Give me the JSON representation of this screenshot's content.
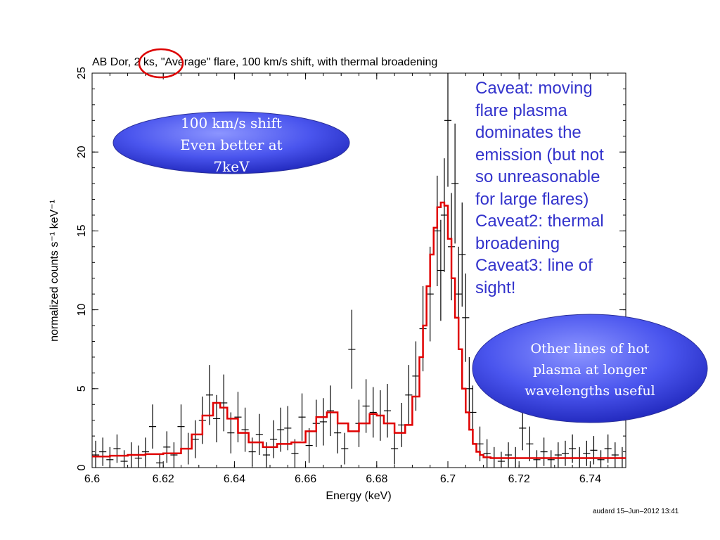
{
  "chart_data": {
    "type": "line",
    "title": "AB Dor, 2 ks, \"Average\" flare, 100 km/s shift, with thermal broadening",
    "xlabel": "Energy (keV)",
    "ylabel": "normalized counts s⁻¹ keV⁻¹",
    "xlim": [
      6.6,
      6.75
    ],
    "ylim": [
      0,
      25
    ],
    "xticks": [
      6.6,
      6.62,
      6.64,
      6.66,
      6.68,
      6.7,
      6.72,
      6.74
    ],
    "xtick_labels": [
      "6.6",
      "6.62",
      "6.64",
      "6.66",
      "6.68",
      "6.7",
      "6.72",
      "6.74"
    ],
    "yticks": [
      0,
      5,
      10,
      15,
      20,
      25
    ],
    "ytick_labels": [
      "0",
      "5",
      "10",
      "15",
      "20",
      "25"
    ],
    "grid": false,
    "model_color": "#e00000",
    "data_color": "#000000",
    "model": {
      "x": [
        6.6,
        6.605,
        6.61,
        6.615,
        6.62,
        6.625,
        6.628,
        6.631,
        6.634,
        6.636,
        6.638,
        6.641,
        6.644,
        6.648,
        6.652,
        6.656,
        6.66,
        6.663,
        6.666,
        6.669,
        6.672,
        6.675,
        6.678,
        6.68,
        6.682,
        6.685,
        6.688,
        6.69,
        6.692,
        6.693,
        6.694,
        6.695,
        6.696,
        6.697,
        6.698,
        6.699,
        6.7,
        6.701,
        6.702,
        6.703,
        6.704,
        6.705,
        6.706,
        6.707,
        6.708,
        6.709,
        6.71,
        6.712,
        6.72,
        6.73,
        6.74,
        6.75
      ],
      "y": [
        0.7,
        0.75,
        0.8,
        0.85,
        0.9,
        1.2,
        2.1,
        3.3,
        4.1,
        3.8,
        3.1,
        2.2,
        1.6,
        1.3,
        1.5,
        1.6,
        2.3,
        3.2,
        3.5,
        2.8,
        2.3,
        2.8,
        3.4,
        3.3,
        2.8,
        2.2,
        2.7,
        4.5,
        7.0,
        9.0,
        11.5,
        13.5,
        15.2,
        16.5,
        16.8,
        16.6,
        14.5,
        12.0,
        9.5,
        7.5,
        5.0,
        3.5,
        2.4,
        1.5,
        1.0,
        0.8,
        0.65,
        0.6,
        0.6,
        0.6,
        0.6,
        0.6
      ]
    },
    "data_points": {
      "x": [
        6.601,
        6.603,
        6.605,
        6.607,
        6.609,
        6.611,
        6.613,
        6.615,
        6.617,
        6.619,
        6.621,
        6.623,
        6.625,
        6.627,
        6.629,
        6.631,
        6.633,
        6.635,
        6.637,
        6.639,
        6.641,
        6.643,
        6.645,
        6.647,
        6.649,
        6.651,
        6.653,
        6.655,
        6.657,
        6.659,
        6.661,
        6.663,
        6.665,
        6.667,
        6.669,
        6.671,
        6.673,
        6.675,
        6.677,
        6.679,
        6.681,
        6.683,
        6.685,
        6.687,
        6.689,
        6.691,
        6.693,
        6.695,
        6.697,
        6.698,
        6.699,
        6.7,
        6.701,
        6.702,
        6.703,
        6.704,
        6.705,
        6.706,
        6.707,
        6.709,
        6.711,
        6.713,
        6.715,
        6.717,
        6.719,
        6.721,
        6.723,
        6.725,
        6.727,
        6.729,
        6.731,
        6.733,
        6.735,
        6.737,
        6.739,
        6.741,
        6.743,
        6.745,
        6.747,
        6.749
      ],
      "y": [
        0.8,
        1.0,
        0.5,
        1.2,
        0.4,
        0.8,
        0.6,
        1.0,
        2.6,
        0.3,
        1.3,
        0.8,
        2.6,
        1.2,
        1.8,
        3.0,
        4.6,
        3.1,
        4.1,
        2.2,
        3.2,
        2.4,
        1.0,
        2.1,
        0.8,
        1.8,
        2.4,
        2.5,
        0.9,
        3.2,
        1.4,
        2.8,
        2.9,
        3.6,
        2.2,
        1.2,
        7.5,
        2.8,
        3.9,
        3.5,
        3.3,
        3.6,
        1.2,
        2.7,
        4.6,
        5.8,
        8.8,
        11.0,
        15.0,
        12.5,
        16.0,
        22.0,
        14.0,
        18.0,
        11.0,
        13.5,
        9.5,
        5.0,
        3.5,
        1.5,
        0.9,
        0.6,
        0.4,
        0.8,
        0.6,
        2.5,
        1.5,
        0.5,
        1.0,
        0.5,
        0.8,
        0.9,
        1.2,
        0.6,
        0.9,
        1.1,
        0.5,
        1.2,
        0.8,
        0.6
      ],
      "err": [
        0.9,
        0.9,
        0.8,
        0.9,
        0.7,
        0.8,
        0.8,
        0.9,
        1.4,
        0.6,
        1.0,
        0.8,
        1.4,
        1.0,
        1.2,
        1.5,
        1.9,
        1.5,
        1.8,
        1.3,
        1.6,
        1.4,
        0.9,
        1.3,
        0.8,
        1.2,
        1.4,
        1.4,
        0.9,
        1.5,
        1.1,
        1.5,
        1.5,
        1.6,
        1.3,
        1.0,
        2.5,
        1.5,
        1.7,
        1.6,
        1.6,
        1.7,
        1.0,
        1.4,
        1.9,
        2.2,
        2.7,
        3.0,
        3.5,
        3.2,
        3.6,
        4.2,
        3.4,
        3.8,
        3.0,
        3.3,
        2.8,
        2.0,
        1.7,
        1.1,
        0.9,
        0.7,
        0.6,
        0.8,
        0.7,
        1.4,
        1.1,
        0.6,
        0.9,
        0.6,
        0.8,
        0.8,
        0.9,
        0.7,
        0.8,
        0.9,
        0.6,
        0.9,
        0.8,
        0.7
      ]
    }
  },
  "annotations": {
    "bubble_top": {
      "lines": [
        "100 km/s shift",
        "Even better at",
        "7keV"
      ]
    },
    "bubble_bottom": {
      "lines": [
        "Other lines of hot",
        "plasma at longer",
        "wavelengths useful"
      ]
    },
    "caveat_lines": [
      "Caveat: moving",
      "flare plasma",
      "dominates the",
      "emission (but not",
      "so unreasonable",
      "for large flares)",
      "Caveat2: thermal",
      "broadening",
      "Caveat3: line of",
      "sight!"
    ],
    "circle_color": "#dd0000",
    "bubble_color": "#4a55ee",
    "caveat_color": "#3333cc"
  },
  "footer": "audard 15–Jun–2012 13:41"
}
